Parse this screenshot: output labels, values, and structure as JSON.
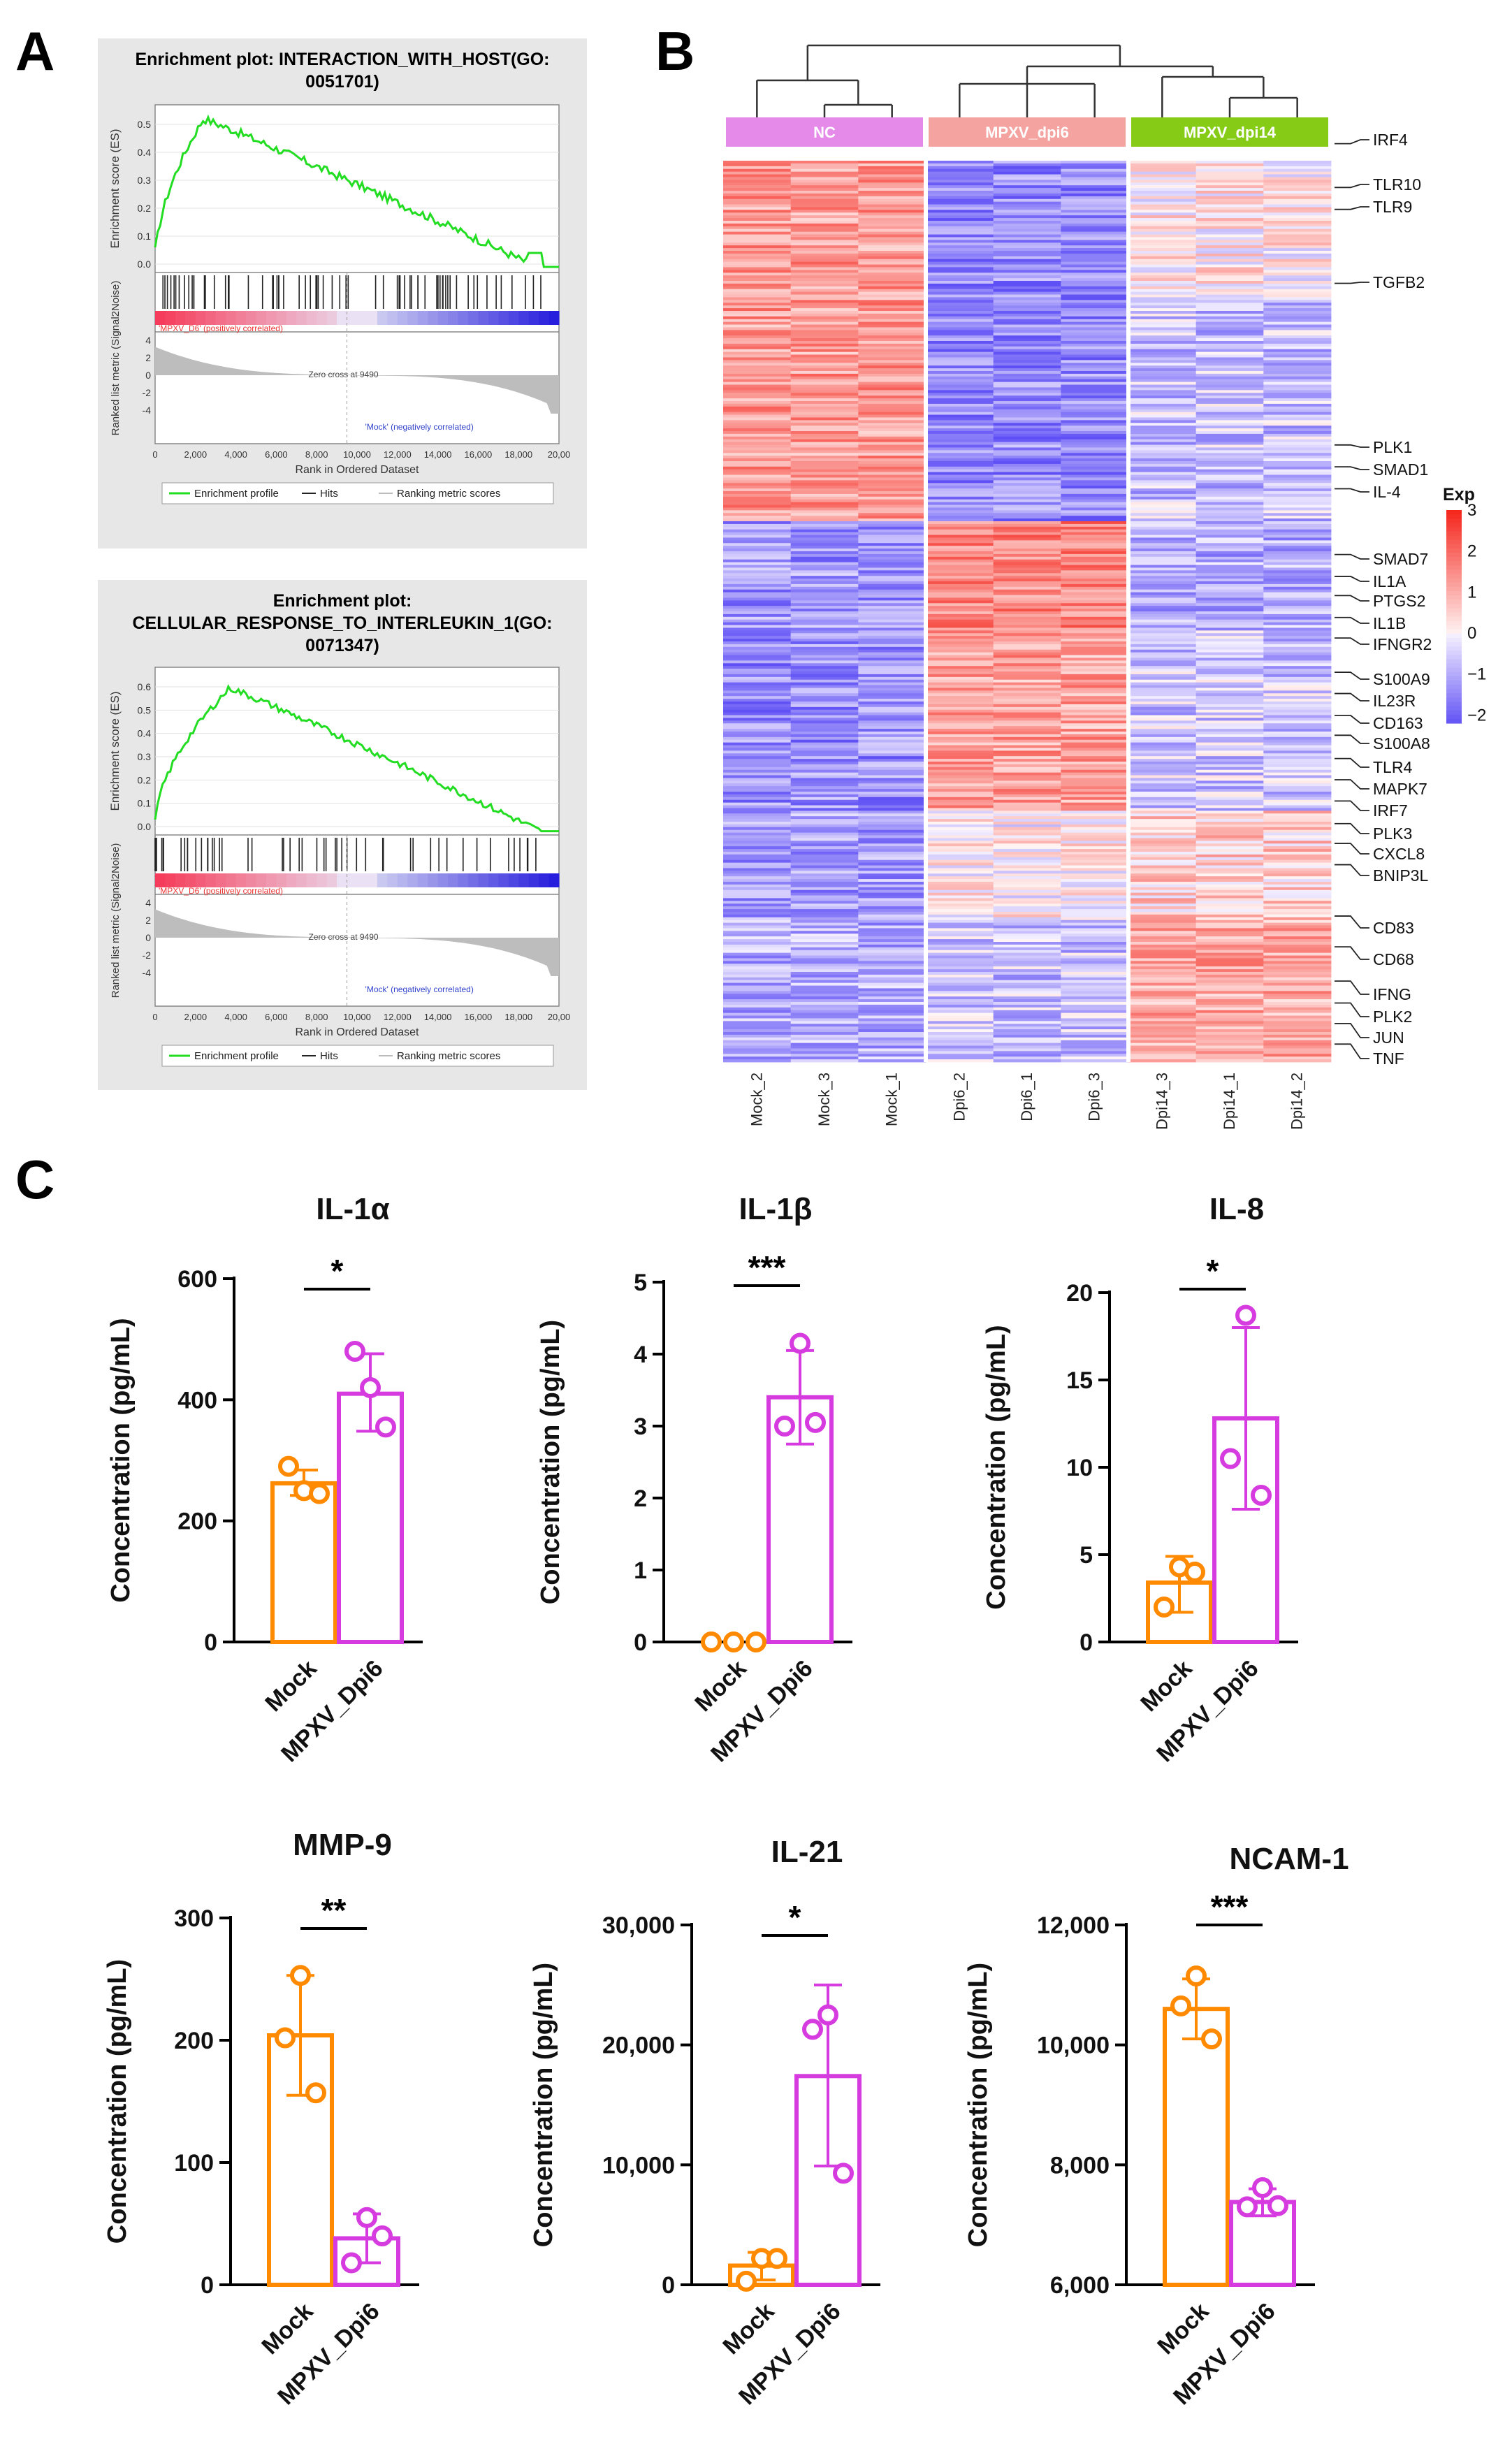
{
  "panel_letters": {
    "a": "A",
    "b": "B",
    "c": "C"
  },
  "gsea": [
    {
      "title_lines": [
        "Enrichment plot: INTERACTION_WITH_HOST(GO:",
        "0051701)"
      ],
      "es_axis_label": "Enrichment score (ES)",
      "es_ticks": [
        "0.5",
        "0.4",
        "0.3",
        "0.2",
        "0.1",
        "0.0"
      ],
      "metric_axis_label": "Ranked list metric (Signal2Noise)",
      "metric_ticks": [
        "4",
        "2",
        "0",
        "-2",
        "-4"
      ],
      "x_ticks": [
        "0",
        "2,000",
        "4,000",
        "6,000",
        "8,000",
        "10,000",
        "12,000",
        "14,000",
        "16,000",
        "18,000",
        "20,00"
      ],
      "x_label": "Rank in Ordered Dataset",
      "pos_label": "'MPXV_D6' (positively correlated)",
      "neg_label": "'Mock' (negatively correlated)",
      "zero_cross": "Zero cross at 9490",
      "legend": [
        "Enrichment profile",
        "Hits",
        "Ranking metric scores"
      ]
    },
    {
      "title_lines": [
        "Enrichment plot:",
        "CELLULAR_RESPONSE_TO_INTERLEUKIN_1(GO:",
        "0071347)"
      ],
      "es_axis_label": "Enrichment score (ES)",
      "es_ticks": [
        "0.6",
        "0.5",
        "0.4",
        "0.3",
        "0.2",
        "0.1",
        "0.0"
      ],
      "metric_axis_label": "Ranked list metric (Signal2Noise)",
      "metric_ticks": [
        "4",
        "2",
        "0",
        "-2",
        "-4"
      ],
      "x_ticks": [
        "0",
        "2,000",
        "4,000",
        "6,000",
        "8,000",
        "10,000",
        "12,000",
        "14,000",
        "16,000",
        "18,000",
        "20,00"
      ],
      "x_label": "Rank in Ordered Dataset",
      "pos_label": "'MPXV_D6' (positively correlated)",
      "neg_label": "'Mock' (negatively correlated)",
      "zero_cross": "Zero cross at 9490",
      "legend": [
        "Enrichment profile",
        "Hits",
        "Ranking metric scores"
      ]
    }
  ],
  "heatmap": {
    "groups": [
      {
        "name": "NC",
        "color": "#e58ae9"
      },
      {
        "name": "MPXV_dpi6",
        "color": "#f5a3a0"
      },
      {
        "name": "MPXV_dpi14",
        "color": "#86cc17"
      }
    ],
    "samples": [
      "Mock_2",
      "Mock_3",
      "Mock_1",
      "Dpi6_2",
      "Dpi6_1",
      "Dpi6_3",
      "Dpi14_3",
      "Dpi14_1",
      "Dpi14_2"
    ],
    "genes": [
      "IRF4",
      "TLR10",
      "TLR9",
      "TGFB2",
      "PLK1",
      "SMAD1",
      "IL-4",
      "SMAD7",
      "IL1A",
      "PTGS2",
      "IL1B",
      "IFNGR2",
      "S100A9",
      "IL23R",
      "CD163",
      "S100A8",
      "TLR4",
      "MAPK7",
      "IRF7",
      "PLK3",
      "CXCL8",
      "BNIP3L",
      "CD83",
      "CD68",
      "IFNG",
      "PLK2",
      "JUN",
      "TNF"
    ],
    "legend_title": "Exp",
    "legend_ticks": [
      "3",
      "2",
      "1",
      "0",
      "−1",
      "−2"
    ]
  },
  "chart_data": [
    {
      "type": "bar",
      "title": "IL-1α",
      "categories": [
        "Mock",
        "MPXV_Dpi6"
      ],
      "values": [
        262,
        410
      ],
      "points": [
        [
          250,
          290,
          245
        ],
        [
          420,
          480,
          355
        ]
      ],
      "errors": [
        [
          242,
          284
        ],
        [
          348,
          476
        ]
      ],
      "ylabel": "Concentration (pg/mL)",
      "ylim": [
        0,
        600
      ],
      "yticks": [
        "0",
        "200",
        "400",
        "600"
      ],
      "significance": "*"
    },
    {
      "type": "bar",
      "title": "IL-1β",
      "categories": [
        "Mock",
        "MPXV_Dpi6"
      ],
      "values": [
        0,
        3.4
      ],
      "points": [
        [
          0,
          0,
          0
        ],
        [
          4.15,
          3.0,
          3.05
        ]
      ],
      "errors": [
        [
          0,
          0
        ],
        [
          2.75,
          4.05
        ]
      ],
      "ylabel": "Concentration (pg/mL)",
      "ylim": [
        0,
        5
      ],
      "yticks": [
        "0",
        "1",
        "2",
        "3",
        "4",
        "5"
      ],
      "significance": "***"
    },
    {
      "type": "bar",
      "title": "IL-8",
      "categories": [
        "Mock",
        "MPXV_Dpi6"
      ],
      "values": [
        3.4,
        12.8
      ],
      "points": [
        [
          4.3,
          2.0,
          4.0
        ],
        [
          18.7,
          10.5,
          8.4
        ]
      ],
      "errors": [
        [
          1.7,
          4.9
        ],
        [
          7.6,
          18.0
        ]
      ],
      "ylabel": "Concentration (pg/mL)",
      "ylim": [
        0,
        20
      ],
      "yticks": [
        "0",
        "5",
        "10",
        "15",
        "20"
      ],
      "significance": "*"
    },
    {
      "type": "bar",
      "title": "MMP-9",
      "categories": [
        "Mock",
        "MPXV_Dpi6"
      ],
      "values": [
        204,
        38
      ],
      "points": [
        [
          253,
          202,
          157
        ],
        [
          55,
          18,
          40
        ]
      ],
      "errors": [
        [
          155,
          253
        ],
        [
          18,
          58
        ]
      ],
      "ylabel": "Concentration (pg/mL)",
      "ylim": [
        0,
        300
      ],
      "yticks": [
        "0",
        "100",
        "200",
        "300"
      ],
      "significance": "**"
    },
    {
      "type": "bar",
      "title": "IL-21",
      "categories": [
        "Mock",
        "MPXV_Dpi6"
      ],
      "values": [
        1600,
        17400
      ],
      "points": [
        [
          2200,
          300,
          2200
        ],
        [
          22500,
          21300,
          9300
        ]
      ],
      "errors": [
        [
          400,
          2700
        ],
        [
          9900,
          25000
        ]
      ],
      "ylabel": "Concentration (pg/mL)",
      "ylim": [
        0,
        30000
      ],
      "yticks": [
        "0",
        "10,000",
        "20,000",
        "30,000"
      ],
      "significance": "*"
    },
    {
      "type": "bar",
      "title": "NCAM-1",
      "categories": [
        "Mock",
        "MPXV_Dpi6"
      ],
      "values": [
        10600,
        7380
      ],
      "points": [
        [
          11150,
          10650,
          10100
        ],
        [
          7620,
          7300,
          7320
        ]
      ],
      "errors": [
        [
          10100,
          11100
        ],
        [
          7150,
          7600
        ]
      ],
      "ylabel": "Concentration (pg/mL)",
      "ylim": [
        6000,
        12000
      ],
      "yticks": [
        "6,000",
        "8,000",
        "10,000",
        "12,000"
      ],
      "significance": "***"
    }
  ]
}
